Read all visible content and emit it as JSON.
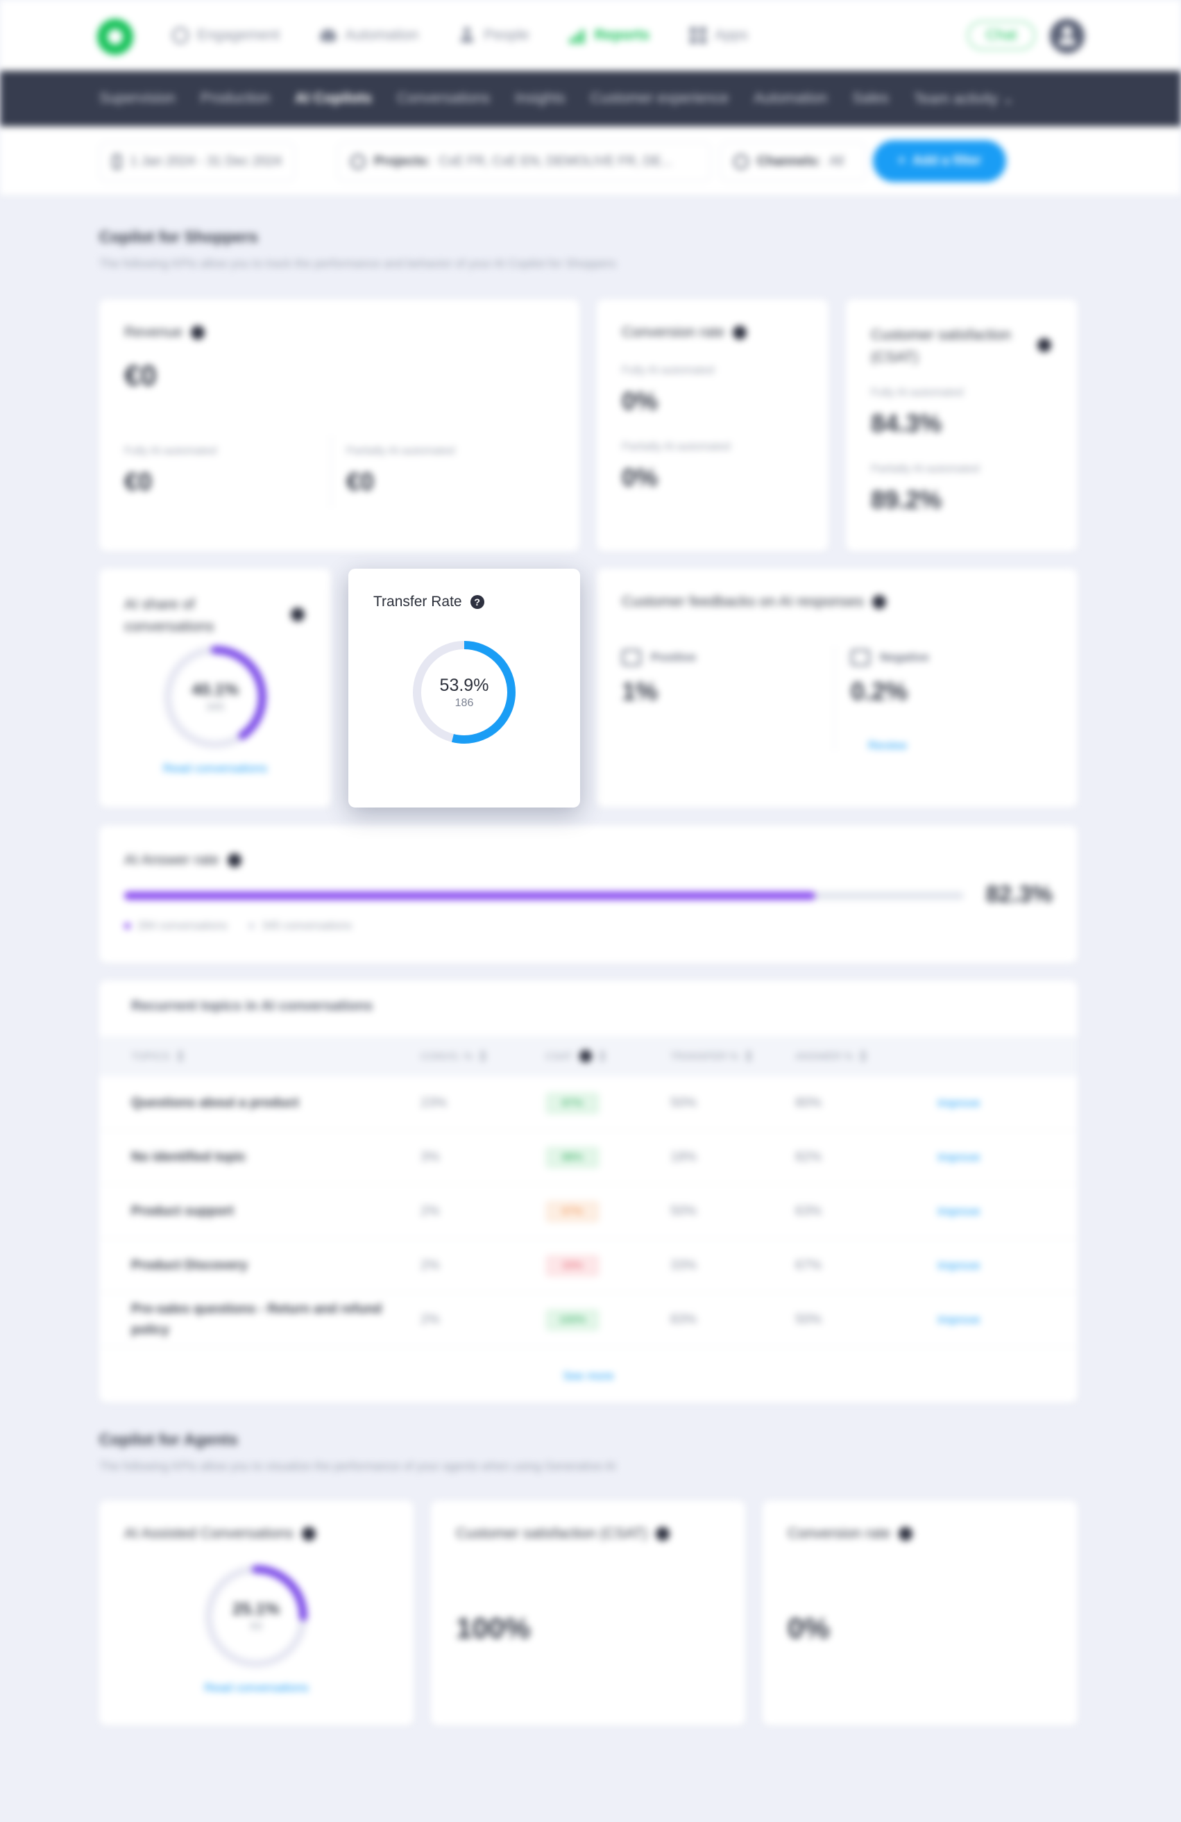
{
  "topnav": {
    "items": [
      {
        "label": "Engagement",
        "icon": "circle-icon"
      },
      {
        "label": "Automation",
        "icon": "cloud-icon"
      },
      {
        "label": "People",
        "icon": "user-icon"
      },
      {
        "label": "Reports",
        "icon": "bar-chart-icon",
        "active": true
      },
      {
        "label": "Apps",
        "icon": "apps-grid-icon"
      }
    ],
    "chat_label": "Chat"
  },
  "subnav": {
    "tabs": [
      "Supervision",
      "Production",
      "AI Copilots",
      "Conversations",
      "Insights",
      "Customer experience",
      "Automation",
      "Sales",
      "Team activity"
    ],
    "active_tab": "AI Copilots"
  },
  "filters": {
    "date": "1 Jan 2024 - 31 Dec 2024",
    "projects_label": "Projects:",
    "projects_value": "CxE FR, CxE EN, DEMOLIVE FR, DE...",
    "channels_label": "Channels:",
    "channels_value": "All",
    "add_filter": "Add a filter"
  },
  "shoppers": {
    "title": "Copilot for Shoppers",
    "subtitle": "The following KPIs allow you to track the performance and behavior of your AI Copilot for Shoppers",
    "revenue": {
      "title": "Revenue",
      "total": "€0",
      "fully_label": "Fully AI-automated",
      "fully_value": "€0",
      "partially_label": "Partially AI-automated",
      "partially_value": "€0"
    },
    "conversion": {
      "title": "Conversion rate",
      "fully_label": "Fully AI-automated",
      "fully_value": "0%",
      "partially_label": "Partially AI-automated",
      "partially_value": "0%"
    },
    "csat": {
      "title": "Customer satisfaction (CSAT)",
      "fully_label": "Fully AI-automated",
      "fully_value": "84.3%",
      "partially_label": "Partially AI-automated",
      "partially_value": "89.2%"
    },
    "ai_share": {
      "title": "AI share of conversations",
      "percent_label": "40.1%",
      "percent_value": 40.1,
      "count": "345",
      "link": "Read conversations",
      "color": "#7b4ae8"
    },
    "transfer": {
      "title": "Transfer Rate",
      "percent_label": "53.9%",
      "percent_value": 53.9,
      "count": "186",
      "color": "#1a9df5"
    },
    "feedback": {
      "title": "Customer feedbacks on AI responses",
      "positive_label": "Positive",
      "positive_value": "1%",
      "negative_label": "Negative",
      "negative_value": "0.2%",
      "review_link": "Review"
    },
    "answer_rate": {
      "title": "AI Answer rate",
      "percent_label": "82.3%",
      "percent_value": 82.3,
      "answered": "284 conversations",
      "total": "345 conversations",
      "color": "#8a4df0"
    },
    "topics": {
      "title": "Recurrent topics in AI conversations",
      "headers": [
        "TOPICS",
        "CONVS. %",
        "CSAT",
        "TRANSFER %",
        "ANSWER %"
      ],
      "rows": [
        {
          "topic": "Questions about a product",
          "convs": "23%",
          "csat": "87%",
          "csat_tone": "green",
          "transfer": "50%",
          "answer": "80%",
          "action": "Improve"
        },
        {
          "topic": "No identified topic",
          "convs": "3%",
          "csat": "88%",
          "csat_tone": "green",
          "transfer": "18%",
          "answer": "82%",
          "action": "Improve"
        },
        {
          "topic": "Product support",
          "convs": "2%",
          "csat": "67%",
          "csat_tone": "orange",
          "transfer": "50%",
          "answer": "63%",
          "action": "Improve"
        },
        {
          "topic": "Product Discovery",
          "convs": "2%",
          "csat": "33%",
          "csat_tone": "red",
          "transfer": "33%",
          "answer": "67%",
          "action": "Improve"
        },
        {
          "topic": "Pre-sales questions - Return and refund policy",
          "convs": "2%",
          "csat": "100%",
          "csat_tone": "green",
          "transfer": "83%",
          "answer": "50%",
          "action": "Improve"
        }
      ],
      "see_more": "See more"
    }
  },
  "agents": {
    "title": "Copilot for Agents",
    "subtitle": "The following KPIs allow you to visualize the performance of your agents when using Generative AI",
    "assisted": {
      "title": "AI Assisted Conversations",
      "percent_label": "25.1%",
      "percent_value": 25.1,
      "count": "93",
      "link": "Read conversations",
      "color": "#7b4ae8"
    },
    "csat": {
      "title": "Customer satisfaction (CSAT)",
      "value": "100%"
    },
    "conversion": {
      "title": "Conversion rate",
      "value": "0%"
    }
  }
}
